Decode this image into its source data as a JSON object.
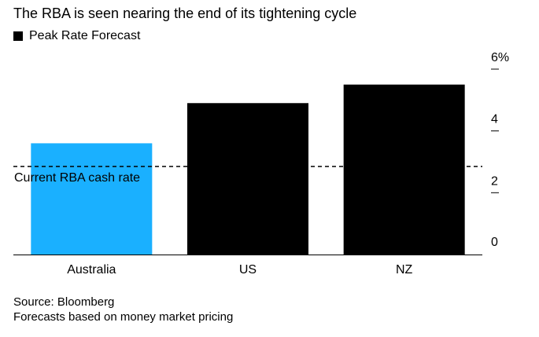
{
  "chart_data": {
    "type": "bar",
    "title": "The RBA is seen nearing the end of its tightening cycle",
    "legend": [
      {
        "name": "Peak Rate Forecast",
        "color": "#000000"
      }
    ],
    "categories": [
      "Australia",
      "US",
      "NZ"
    ],
    "values": [
      3.6,
      4.9,
      5.5
    ],
    "bar_colors": [
      "#1ab0ff",
      "#000000",
      "#000000"
    ],
    "ylim": [
      0,
      6
    ],
    "yticks": [
      {
        "value": 0,
        "label": "0"
      },
      {
        "value": 2,
        "label": "2"
      },
      {
        "value": 4,
        "label": "4"
      },
      {
        "value": 6,
        "label": "6%"
      }
    ],
    "reference_line": {
      "value": 2.85,
      "label": "Current RBA cash rate",
      "style": "dashed"
    },
    "xlabel": "",
    "ylabel": "",
    "grid": false,
    "legend_placement": "top-left"
  },
  "footer": {
    "source": "Source: Bloomberg",
    "note": "Forecasts based on money market pricing"
  }
}
